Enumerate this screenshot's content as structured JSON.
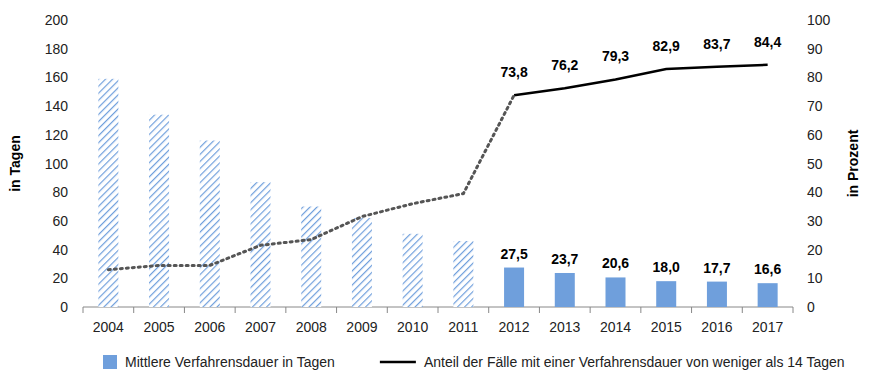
{
  "chart_data": {
    "type": "bar",
    "categories": [
      "2004",
      "2005",
      "2006",
      "2007",
      "2008",
      "2009",
      "2010",
      "2011",
      "2012",
      "2013",
      "2014",
      "2015",
      "2016",
      "2017"
    ],
    "ylabel": "in Tagen",
    "y2label": "in Prozent",
    "ylim": [
      0,
      200
    ],
    "yticks": [
      0,
      20,
      40,
      60,
      80,
      100,
      120,
      140,
      160,
      180,
      200
    ],
    "y2lim": [
      0,
      100
    ],
    "y2ticks": [
      0,
      10,
      20,
      30,
      40,
      50,
      60,
      70,
      80,
      90,
      100
    ],
    "data_labels": true,
    "legend": "bottom",
    "series": [
      {
        "name": "Mittlere Verfahrensdauer in Tagen",
        "type": "bar",
        "color": "#6f9fdc",
        "values": [
          159,
          134,
          116,
          87,
          70,
          62,
          51,
          46,
          27.5,
          23.7,
          20.6,
          18.0,
          17.7,
          16.6
        ],
        "value_labels": [
          null,
          null,
          null,
          null,
          null,
          null,
          null,
          null,
          "27,5",
          "23,7",
          "20,6",
          "18,0",
          "17,7",
          "16,6"
        ]
      },
      {
        "name": "Anteil der Fälle mit einer Verfahrensdauer von weniger als 14 Tagen",
        "type": "line",
        "axis": "y2",
        "color": "#000000",
        "line_style": "solid",
        "values": [
          null,
          null,
          null,
          null,
          null,
          null,
          null,
          null,
          73.8,
          76.2,
          79.3,
          82.9,
          83.7,
          84.4
        ],
        "value_labels": [
          null,
          null,
          null,
          null,
          null,
          null,
          null,
          null,
          "73,8",
          "76,2",
          "79,3",
          "82,9",
          "83,7",
          "84,4"
        ]
      },
      {
        "type": "line",
        "axis": "y2",
        "color": "#555555",
        "line_style": "dotted",
        "values": [
          13,
          14.5,
          14.5,
          21.5,
          23.5,
          31.5,
          36,
          39.5,
          73.8,
          null,
          null,
          null,
          null,
          null
        ]
      }
    ]
  }
}
